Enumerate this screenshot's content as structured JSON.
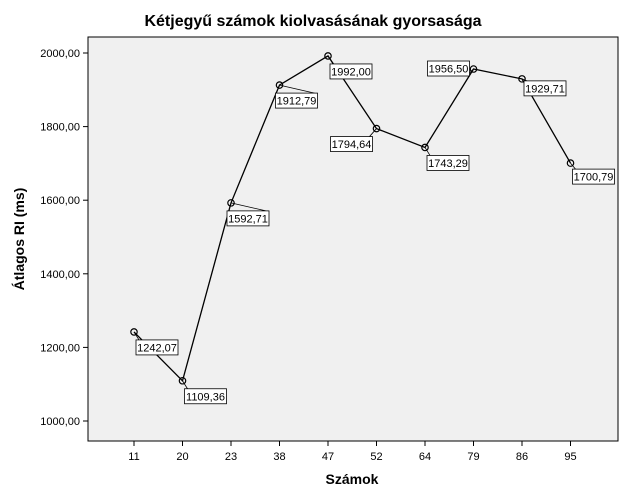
{
  "chart_data": {
    "type": "line",
    "title": "Kétjegyű számok kiolvasásának gyorsasága",
    "xlabel": "Számok",
    "ylabel": "Átlagos RI (ms)",
    "categories": [
      "11",
      "20",
      "23",
      "38",
      "47",
      "52",
      "64",
      "79",
      "86",
      "95"
    ],
    "series": [
      {
        "values": [
          1242.07,
          1109.36,
          1592.71,
          1912.79,
          1992.0,
          1794.64,
          1743.29,
          1956.5,
          1929.71,
          1700.79
        ],
        "labels": [
          "1242,07",
          "1109,36",
          "1592,71",
          "1912,79",
          "1992,00",
          "1794,64",
          "1743,29",
          "1956,50",
          "1929,71",
          "1700,79"
        ]
      }
    ],
    "yticks": [
      "1000,00",
      "1200,00",
      "1400,00",
      "1600,00",
      "1800,00",
      "2000,00"
    ],
    "ylim": [
      1000,
      2000
    ],
    "grid": false,
    "colors": {
      "plot_background": "#f0f0f0",
      "line": "#000000",
      "label_box": "#ffffff"
    }
  }
}
